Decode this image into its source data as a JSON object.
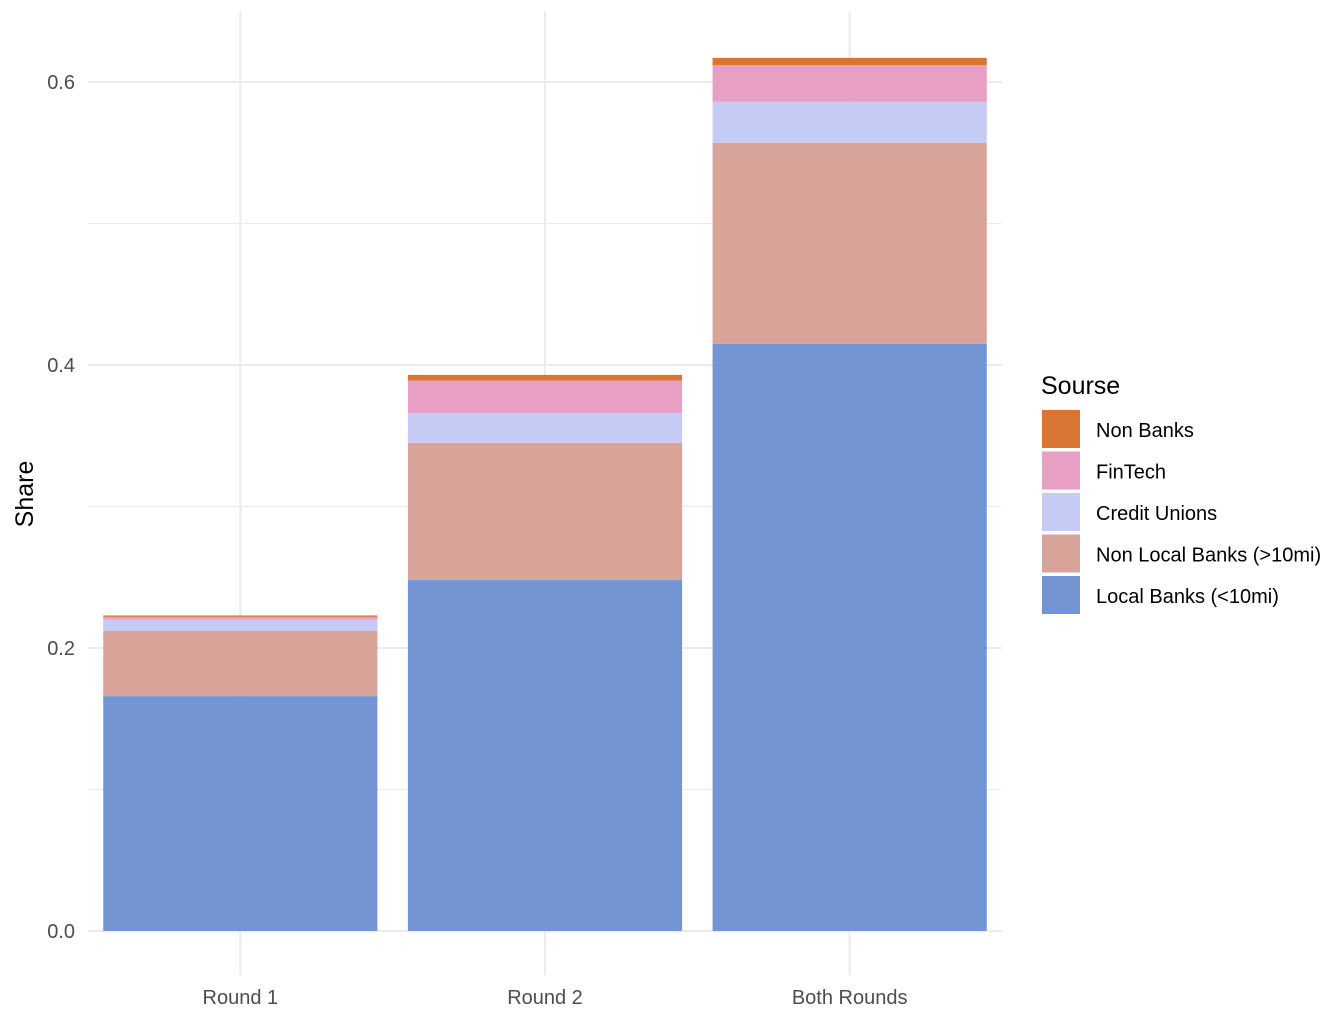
{
  "chart_data": {
    "type": "bar",
    "stacked": true,
    "title": "",
    "xlabel": "",
    "ylabel": "Share",
    "ylim": [
      0,
      0.645
    ],
    "yticks": [
      0.0,
      0.2,
      0.4,
      0.6
    ],
    "ytick_labels": [
      "0.0",
      "0.2",
      "0.4",
      "0.6"
    ],
    "grid": true,
    "legend_position": "right",
    "legend_title": "Sourse",
    "categories": [
      "Round 1",
      "Round 2",
      "Both Rounds"
    ],
    "series": [
      {
        "name": "Local Banks (<10mi)",
        "color": "#7395d3",
        "values": [
          0.166,
          0.248,
          0.415
        ]
      },
      {
        "name": "Non Local Banks (>10mi)",
        "color": "#d8a399",
        "values": [
          0.046,
          0.097,
          0.142
        ]
      },
      {
        "name": "Credit Unions",
        "color": "#c6cbf5",
        "values": [
          0.008,
          0.021,
          0.029
        ]
      },
      {
        "name": "FinTech",
        "color": "#e79fc4",
        "values": [
          0.002,
          0.023,
          0.026
        ]
      },
      {
        "name": "Non Banks",
        "color": "#d97434",
        "values": [
          0.001,
          0.004,
          0.005
        ]
      }
    ],
    "legend_order": [
      "Non Banks",
      "FinTech",
      "Credit Unions",
      "Non Local Banks (>10mi)",
      "Local Banks (<10mi)"
    ]
  }
}
